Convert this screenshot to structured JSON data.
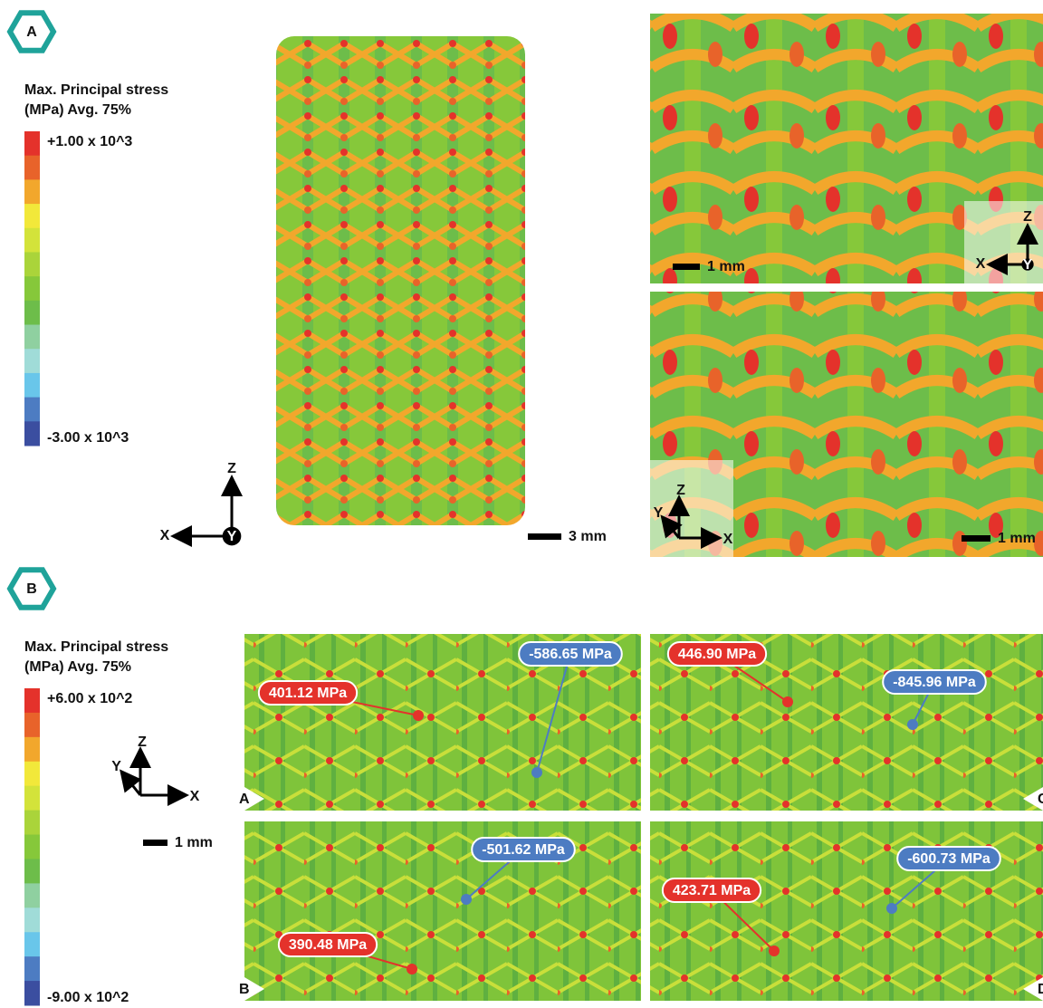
{
  "panel_a": {
    "label": "A",
    "legend": {
      "title": [
        "Max. Principal stress",
        "(MPa) Avg. 75%"
      ],
      "max_label": "+1.00 x 10^3",
      "min_label": "-3.00 x 10^3",
      "colors": [
        "#e4322b",
        "#e8632a",
        "#f2a72c",
        "#f2e83a",
        "#d3e33a",
        "#aad43a",
        "#86c83a",
        "#6dbd4a",
        "#8fd0a0",
        "#a0dcd8",
        "#69c6ea",
        "#4d7cc2",
        "#3b4ea0"
      ]
    },
    "triad": {
      "vertical": "Z",
      "horizontal": "X",
      "normal": "Y"
    },
    "scale_bar": "3 mm",
    "views": [
      {
        "scale_bar": "1 mm",
        "triad": {
          "vertical": "Z",
          "horizontal": "X",
          "normal": "Y"
        }
      },
      {
        "scale_bar": "1 mm",
        "triad": {
          "vertical": "Z",
          "horizontal": "X",
          "depth": "Y"
        }
      }
    ]
  },
  "panel_b": {
    "label": "B",
    "legend": {
      "title": [
        "Max. Principal stress",
        "(MPa) Avg. 75%"
      ],
      "max_label": "+6.00 x 10^2",
      "min_label": "-9.00 x 10^2",
      "colors": [
        "#e4322b",
        "#e8632a",
        "#f2a72c",
        "#f2e83a",
        "#d3e33a",
        "#aad43a",
        "#86c83a",
        "#6dbd4a",
        "#8fd0a0",
        "#a0dcd8",
        "#69c6ea",
        "#4d7cc2",
        "#3b4ea0"
      ]
    },
    "triad": {
      "vertical": "Z",
      "horizontal": "X",
      "depth": "Y"
    },
    "scale_bar": "1 mm",
    "views": [
      {
        "label": "A",
        "callouts": [
          {
            "text": "401.12 MPa",
            "color": "#e4322b"
          },
          {
            "text": "-586.65 MPa",
            "color": "#4d7cc2"
          }
        ]
      },
      {
        "label": "C",
        "callouts": [
          {
            "text": "446.90 MPa",
            "color": "#e4322b"
          },
          {
            "text": "-845.96 MPa",
            "color": "#4d7cc2"
          }
        ]
      },
      {
        "label": "B",
        "callouts": [
          {
            "text": "-501.62 MPa",
            "color": "#4d7cc2"
          },
          {
            "text": "390.48 MPa",
            "color": "#e4322b"
          }
        ]
      },
      {
        "label": "D",
        "callouts": [
          {
            "text": "-600.73 MPa",
            "color": "#4d7cc2"
          },
          {
            "text": "423.71 MPa",
            "color": "#e4322b"
          }
        ]
      }
    ]
  }
}
